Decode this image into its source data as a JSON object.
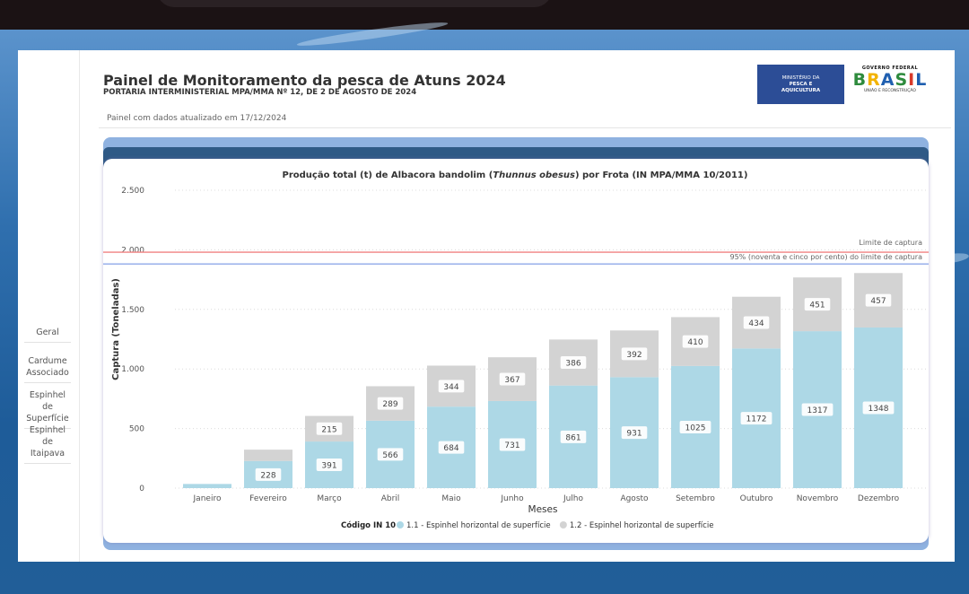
{
  "nav": {
    "items": [
      "Geral",
      "Cardume Associado",
      "Espinhel de Superfície",
      "Espinhel de Itaipava"
    ]
  },
  "header": {
    "title": "Painel de Monitoramento da pesca de Atuns 2024",
    "subtitle": "PORTARIA INTERMINISTERIAL MPA/MMA Nº 12, DE 2 DE AGOSTO DE 2024",
    "updated": "Painel com dados atualizado em 17/12/2024",
    "logo_ministry": [
      "MINISTÉRIO DA",
      "PESCA E",
      "AQUICULTURA"
    ],
    "logo_gov_top": "GOVERNO FEDERAL",
    "logo_gov_word": "BRASIL",
    "logo_gov_bottom": "UNIÃO E RECONSTRUÇÃO"
  },
  "chart_data": {
    "type": "bar",
    "stacked": true,
    "title_pre": "Produção total (t) de Albacora bandolim (",
    "title_italic": "Thunnus obesus",
    "title_post": ") por Frota (IN MPA/MMA 10/2011)",
    "xlabel": "Meses",
    "ylabel": "Captura (Toneladas)",
    "ylim": [
      0,
      2500
    ],
    "yticks": [
      0,
      500,
      1000,
      1500,
      2000,
      2500
    ],
    "ytick_labels": [
      "0",
      "500",
      "1.000",
      "1.500",
      "2.000",
      "2.500"
    ],
    "categories": [
      "Janeiro",
      "Fevereiro",
      "Março",
      "Abril",
      "Maio",
      "Junho",
      "Julho",
      "Agosto",
      "Setembro",
      "Outubro",
      "Novembro",
      "Dezembro"
    ],
    "series": [
      {
        "name": "1.1 - Espinhel horizontal de superfície",
        "color": "#add8e6",
        "values": [
          35,
          228,
          391,
          566,
          684,
          731,
          861,
          931,
          1025,
          1172,
          1317,
          1348
        ],
        "labels": [
          null,
          "228",
          "391",
          "566",
          "684",
          "731",
          "861",
          "931",
          "1025",
          "1172",
          "1317",
          "1348"
        ]
      },
      {
        "name": "1.2 - Espinhel horizontal de superfície",
        "color": "#d3d3d3",
        "values": [
          0,
          95,
          215,
          289,
          344,
          367,
          386,
          392,
          410,
          434,
          451,
          457
        ],
        "labels": [
          null,
          null,
          "215",
          "289",
          "344",
          "367",
          "386",
          "392",
          "410",
          "434",
          "451",
          "457"
        ]
      }
    ],
    "legend_title": "Código IN 10",
    "legend_position": "bottom-center",
    "reference_lines": [
      {
        "value": 1980,
        "label": "Limite de captura",
        "color": "#f08080"
      },
      {
        "value": 1881,
        "label": "95% (noventa e cinco por cento) do limite de captura",
        "color": "#8fa8e8"
      }
    ],
    "grid": true
  }
}
